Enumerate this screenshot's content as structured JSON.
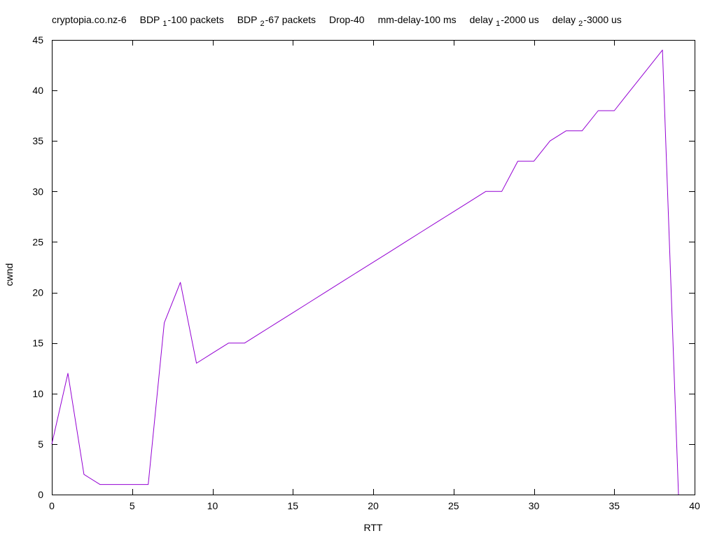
{
  "chart_data": {
    "type": "line",
    "title_parts": [
      {
        "text": "cryptopia.co.nz-6"
      },
      {
        "text": "BDP",
        "sub": "1",
        "after": "-100 packets"
      },
      {
        "text": "BDP",
        "sub": "2",
        "after": "-67 packets"
      },
      {
        "text": "Drop-40"
      },
      {
        "text": "mm-delay-100 ms"
      },
      {
        "text": "delay",
        "sub": "1",
        "after": "-2000 us"
      },
      {
        "text": "delay",
        "sub": "2",
        "after": "-3000 us"
      }
    ],
    "xlabel": "RTT",
    "ylabel": "cwnd",
    "xlim": [
      0,
      40
    ],
    "ylim": [
      0,
      45
    ],
    "xticks": [
      0,
      5,
      10,
      15,
      20,
      25,
      30,
      35,
      40
    ],
    "yticks": [
      0,
      5,
      10,
      15,
      20,
      25,
      30,
      35,
      40,
      45
    ],
    "grid": false,
    "series": [
      {
        "color": "#9400d3",
        "x": [
          0,
          1,
          2,
          3,
          4,
          5,
          6,
          7,
          8,
          9,
          10,
          11,
          12,
          13,
          14,
          15,
          16,
          17,
          18,
          19,
          20,
          21,
          22,
          23,
          24,
          25,
          26,
          27,
          28,
          29,
          30,
          31,
          32,
          33,
          34,
          35,
          36,
          37,
          38,
          39
        ],
        "y": [
          5,
          12,
          2,
          1,
          1,
          1,
          1,
          17,
          21,
          13,
          14,
          15,
          15,
          16,
          17,
          18,
          19,
          20,
          21,
          22,
          23,
          24,
          25,
          26,
          27,
          28,
          29,
          30,
          30,
          33,
          33,
          35,
          36,
          36,
          38,
          38,
          40,
          42,
          44,
          0
        ]
      }
    ]
  }
}
